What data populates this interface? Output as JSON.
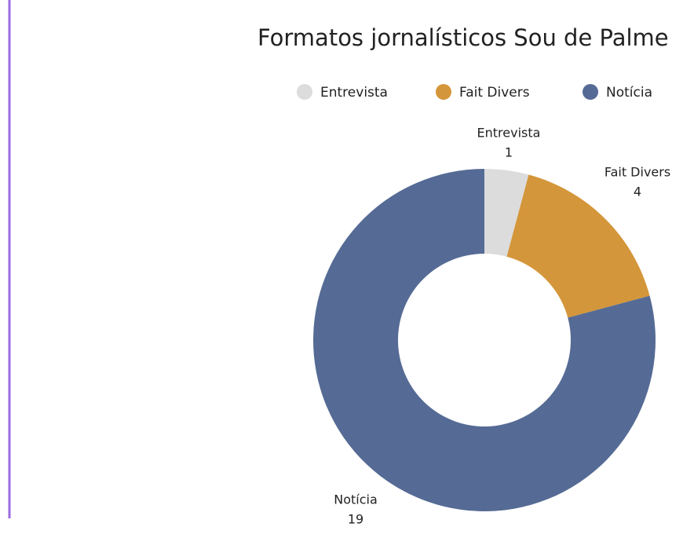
{
  "chart_data": {
    "type": "donut",
    "title": "Formatos jornalísticos Sou de Palme",
    "categories": [
      "Entrevista",
      "Fait Divers",
      "Notícia"
    ],
    "values": [
      1,
      4,
      19
    ],
    "colors": [
      "#dcdcdc",
      "#d4963a",
      "#556b95"
    ],
    "legend": "top"
  }
}
